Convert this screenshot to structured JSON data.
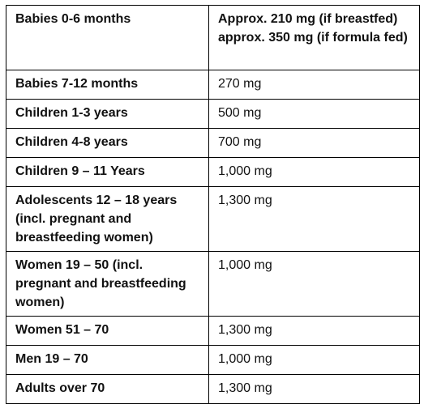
{
  "table": {
    "rows": [
      {
        "group": "Babies 0-6 months",
        "amount": "Approx. 210 mg (if breastfed) approx. 350 mg (if formula fed)"
      },
      {
        "group": "Babies 7-12 months",
        "amount": "270 mg"
      },
      {
        "group": "Children 1-3 years",
        "amount": "500 mg"
      },
      {
        "group": "Children 4-8 years",
        "amount": "700 mg"
      },
      {
        "group": "Children 9 – 11 Years",
        "amount": "1,000 mg"
      },
      {
        "group": "Adolescents 12 – 18 years (incl. pregnant and breastfeeding women)",
        "amount": "1,300 mg"
      },
      {
        "group": "Women 19 – 50 (incl. pregnant and breastfeeding women)",
        "amount": "1,000 mg"
      },
      {
        "group": "Women 51 – 70",
        "amount": "1,300 mg"
      },
      {
        "group": "Men 19 – 70",
        "amount": "1,000 mg"
      },
      {
        "group": "Adults over 70",
        "amount": "1,300 mg"
      }
    ]
  }
}
